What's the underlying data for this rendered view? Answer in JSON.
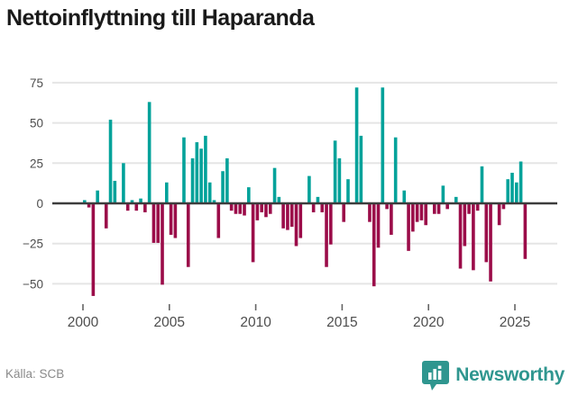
{
  "header": {
    "title": "Nettoinflyttning till Haparanda"
  },
  "footer": {
    "source_label": "Källa: SCB",
    "brand": "Newsworthy"
  },
  "colors": {
    "positive_bar": "#00a29a",
    "negative_bar": "#9b0c49",
    "gridline": "#e5e5e5",
    "zero_line": "#3d3d3d",
    "axis_text": "#4d4d4d",
    "title_text": "#1a1a1a",
    "source_text": "#8a8a8a",
    "brand_teal": "#2f968f"
  },
  "chart_data": {
    "type": "bar",
    "title": "Nettoinflyttning till Haparanda",
    "unit": "persons per quarter (net migration)",
    "frequency": "quarterly",
    "start_period": "2000-Q1",
    "end_period": "2025-Q3",
    "xlabel": "",
    "ylabel": "",
    "ylim": [
      -62,
      80
    ],
    "grid": "horizontal",
    "legend": "none",
    "yticks": [
      75,
      50,
      25,
      0,
      -25,
      -50
    ],
    "ytick_labels": [
      "75",
      "50",
      "25",
      "0",
      "−25",
      "−50"
    ],
    "xticks": [
      2000,
      2005,
      2010,
      2015,
      2020,
      2025
    ],
    "xtick_labels": [
      "2000",
      "2005",
      "2010",
      "2015",
      "2020",
      "2025"
    ],
    "values": [
      2,
      -2,
      -57,
      8,
      0,
      -15,
      52,
      14,
      0,
      25,
      -4,
      2,
      -4,
      3,
      -5,
      63,
      -24,
      -24,
      -50,
      13,
      -19,
      -21,
      0,
      41,
      -39,
      28,
      38,
      34,
      42,
      13,
      2,
      -21,
      20,
      28,
      -4,
      -6,
      -6,
      -7,
      10,
      -36,
      -10,
      -5,
      -8,
      -6,
      22,
      4,
      -15,
      -16,
      -14,
      -26,
      -21,
      0,
      17,
      -5,
      4,
      -5,
      -39,
      -25,
      39,
      28,
      -11,
      15,
      0,
      72,
      42,
      0,
      -11,
      -51,
      -27,
      72,
      -3,
      -19,
      41,
      0,
      8,
      -29,
      -17,
      -11,
      -10,
      -13,
      0,
      -6,
      -6,
      11,
      -3,
      0,
      4,
      -40,
      -26,
      -6,
      -41,
      -4,
      23,
      -36,
      -48,
      0,
      -13,
      -3,
      15,
      19,
      13,
      26,
      -34
    ]
  }
}
